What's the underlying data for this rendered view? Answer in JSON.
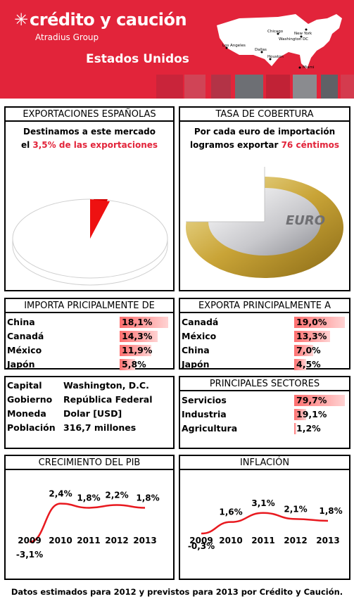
{
  "header": {
    "brand": "crédito y caución",
    "group": "Atradius Group",
    "country": "Estados Unidos",
    "cities": [
      "Chicago",
      "New York",
      "Washington DC",
      "Los Angeles",
      "Dallas",
      "Houston",
      "Miami"
    ],
    "brand_color": "#e2243a"
  },
  "exportaciones": {
    "title": "EXPORTACIONES ESPAÑOLAS",
    "line1": "Destinamos a este mercado",
    "line2_prefix": "el ",
    "line2_value": "3,5% de las exportaciones",
    "share": 3.5
  },
  "cobertura": {
    "title": "TASA DE COBERTURA",
    "line1": "Por cada euro de importación",
    "line2_prefix": "logramos exportar ",
    "line2_value": "76 céntimos",
    "euro_text": "EURO",
    "ratio": 0.76
  },
  "importa": {
    "title": "IMPORTA PRICIPALMENTE DE",
    "rows": [
      {
        "name": "China",
        "pct": "18,1%",
        "value": 18.1
      },
      {
        "name": "Canadá",
        "pct": "14,3%",
        "value": 14.3
      },
      {
        "name": "México",
        "pct": "11,9%",
        "value": 11.9
      },
      {
        "name": "Japón",
        "pct": "5,8%",
        "value": 5.8
      }
    ]
  },
  "exporta": {
    "title": "EXPORTA PRINCIPALMENTE A",
    "rows": [
      {
        "name": "Canadá",
        "pct": "19,0%",
        "value": 19.0
      },
      {
        "name": "México",
        "pct": "13,3%",
        "value": 13.3
      },
      {
        "name": "China",
        "pct": "7,0%",
        "value": 7.0
      },
      {
        "name": "Japón",
        "pct": "4,5%",
        "value": 4.5
      }
    ]
  },
  "datos": {
    "rows": [
      {
        "label": "Capital",
        "value": "Washington, D.C."
      },
      {
        "label": "Gobierno",
        "value": "República Federal"
      },
      {
        "label": "Moneda",
        "value": "Dolar [USD]"
      },
      {
        "label": "Población",
        "value": "316,7 millones"
      }
    ]
  },
  "sectores": {
    "title": "PRINCIPALES SECTORES",
    "rows": [
      {
        "name": "Servicios",
        "pct": "79,7%",
        "value": 79.7
      },
      {
        "name": "Industria",
        "pct": "19,1%",
        "value": 19.1
      },
      {
        "name": "Agricultura",
        "pct": "1,2%",
        "value": 1.2
      }
    ]
  },
  "chart_data": [
    {
      "type": "line",
      "title": "CRECIMIENTO DEL PIB",
      "x": [
        "2009",
        "2010",
        "2011",
        "2012",
        "2013"
      ],
      "values": [
        -3.1,
        2.4,
        1.8,
        2.2,
        1.8
      ],
      "labels": [
        "-3,1%",
        "2,4%",
        "1,8%",
        "2,2%",
        "1,8%"
      ],
      "color": "#e8191f"
    },
    {
      "type": "line",
      "title": "INFLACIÓN",
      "x": [
        "2009",
        "2010",
        "2011",
        "2012",
        "2013"
      ],
      "values": [
        -0.3,
        1.6,
        3.1,
        2.1,
        1.8
      ],
      "labels": [
        "-0,3%",
        "1,6%",
        "3,1%",
        "2,1%",
        "1,8%"
      ],
      "color": "#e8191f"
    }
  ],
  "footer": "Datos estimados para 2012 y previstos para 2013 por Crédito y Caución."
}
